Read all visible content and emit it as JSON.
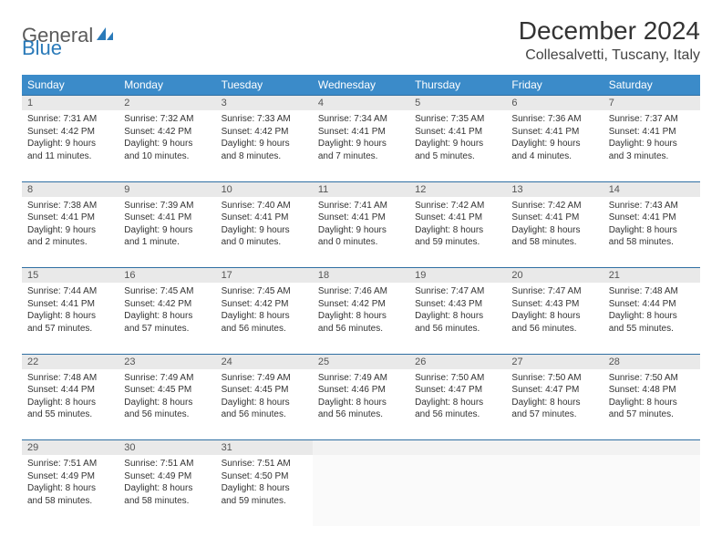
{
  "logo": {
    "text1": "General",
    "text2": "Blue"
  },
  "title": "December 2024",
  "location": "Collesalvetti, Tuscany, Italy",
  "colors": {
    "header_bg": "#3b8bc9",
    "header_text": "#ffffff",
    "daynum_bg": "#e9e9e9",
    "rule": "#2f6fa3",
    "logo_gray": "#5a5a5a",
    "logo_blue": "#2a7ab9"
  },
  "weekdays": [
    "Sunday",
    "Monday",
    "Tuesday",
    "Wednesday",
    "Thursday",
    "Friday",
    "Saturday"
  ],
  "weeks": [
    [
      {
        "n": "1",
        "sr": "7:31 AM",
        "ss": "4:42 PM",
        "dl": "9 hours and 11 minutes."
      },
      {
        "n": "2",
        "sr": "7:32 AM",
        "ss": "4:42 PM",
        "dl": "9 hours and 10 minutes."
      },
      {
        "n": "3",
        "sr": "7:33 AM",
        "ss": "4:42 PM",
        "dl": "9 hours and 8 minutes."
      },
      {
        "n": "4",
        "sr": "7:34 AM",
        "ss": "4:41 PM",
        "dl": "9 hours and 7 minutes."
      },
      {
        "n": "5",
        "sr": "7:35 AM",
        "ss": "4:41 PM",
        "dl": "9 hours and 5 minutes."
      },
      {
        "n": "6",
        "sr": "7:36 AM",
        "ss": "4:41 PM",
        "dl": "9 hours and 4 minutes."
      },
      {
        "n": "7",
        "sr": "7:37 AM",
        "ss": "4:41 PM",
        "dl": "9 hours and 3 minutes."
      }
    ],
    [
      {
        "n": "8",
        "sr": "7:38 AM",
        "ss": "4:41 PM",
        "dl": "9 hours and 2 minutes."
      },
      {
        "n": "9",
        "sr": "7:39 AM",
        "ss": "4:41 PM",
        "dl": "9 hours and 1 minute."
      },
      {
        "n": "10",
        "sr": "7:40 AM",
        "ss": "4:41 PM",
        "dl": "9 hours and 0 minutes."
      },
      {
        "n": "11",
        "sr": "7:41 AM",
        "ss": "4:41 PM",
        "dl": "9 hours and 0 minutes."
      },
      {
        "n": "12",
        "sr": "7:42 AM",
        "ss": "4:41 PM",
        "dl": "8 hours and 59 minutes."
      },
      {
        "n": "13",
        "sr": "7:42 AM",
        "ss": "4:41 PM",
        "dl": "8 hours and 58 minutes."
      },
      {
        "n": "14",
        "sr": "7:43 AM",
        "ss": "4:41 PM",
        "dl": "8 hours and 58 minutes."
      }
    ],
    [
      {
        "n": "15",
        "sr": "7:44 AM",
        "ss": "4:41 PM",
        "dl": "8 hours and 57 minutes."
      },
      {
        "n": "16",
        "sr": "7:45 AM",
        "ss": "4:42 PM",
        "dl": "8 hours and 57 minutes."
      },
      {
        "n": "17",
        "sr": "7:45 AM",
        "ss": "4:42 PM",
        "dl": "8 hours and 56 minutes."
      },
      {
        "n": "18",
        "sr": "7:46 AM",
        "ss": "4:42 PM",
        "dl": "8 hours and 56 minutes."
      },
      {
        "n": "19",
        "sr": "7:47 AM",
        "ss": "4:43 PM",
        "dl": "8 hours and 56 minutes."
      },
      {
        "n": "20",
        "sr": "7:47 AM",
        "ss": "4:43 PM",
        "dl": "8 hours and 56 minutes."
      },
      {
        "n": "21",
        "sr": "7:48 AM",
        "ss": "4:44 PM",
        "dl": "8 hours and 55 minutes."
      }
    ],
    [
      {
        "n": "22",
        "sr": "7:48 AM",
        "ss": "4:44 PM",
        "dl": "8 hours and 55 minutes."
      },
      {
        "n": "23",
        "sr": "7:49 AM",
        "ss": "4:45 PM",
        "dl": "8 hours and 56 minutes."
      },
      {
        "n": "24",
        "sr": "7:49 AM",
        "ss": "4:45 PM",
        "dl": "8 hours and 56 minutes."
      },
      {
        "n": "25",
        "sr": "7:49 AM",
        "ss": "4:46 PM",
        "dl": "8 hours and 56 minutes."
      },
      {
        "n": "26",
        "sr": "7:50 AM",
        "ss": "4:47 PM",
        "dl": "8 hours and 56 minutes."
      },
      {
        "n": "27",
        "sr": "7:50 AM",
        "ss": "4:47 PM",
        "dl": "8 hours and 57 minutes."
      },
      {
        "n": "28",
        "sr": "7:50 AM",
        "ss": "4:48 PM",
        "dl": "8 hours and 57 minutes."
      }
    ],
    [
      {
        "n": "29",
        "sr": "7:51 AM",
        "ss": "4:49 PM",
        "dl": "8 hours and 58 minutes."
      },
      {
        "n": "30",
        "sr": "7:51 AM",
        "ss": "4:49 PM",
        "dl": "8 hours and 58 minutes."
      },
      {
        "n": "31",
        "sr": "7:51 AM",
        "ss": "4:50 PM",
        "dl": "8 hours and 59 minutes."
      },
      null,
      null,
      null,
      null
    ]
  ],
  "labels": {
    "sunrise": "Sunrise:",
    "sunset": "Sunset:",
    "daylight": "Daylight:"
  }
}
